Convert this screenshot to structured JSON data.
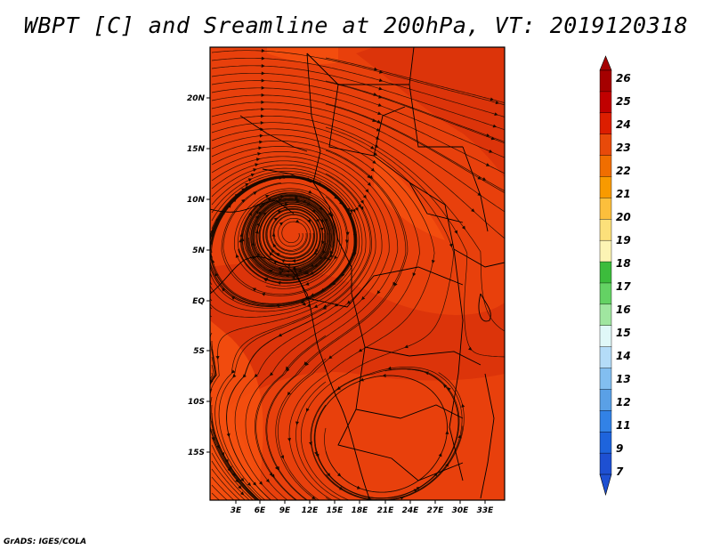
{
  "title": "WBPT [C] and Sreamline at 200hPa, VT: 2019120318",
  "credit": "GrADS: IGES/COLA",
  "map": {
    "x_ticks": [
      "3E",
      "6E",
      "9E",
      "12E",
      "15E",
      "18E",
      "21E",
      "24E",
      "27E",
      "30E",
      "33E"
    ],
    "y_ticks": [
      "20N",
      "15N",
      "10N",
      "5N",
      "EQ",
      "5S",
      "10S",
      "15S"
    ],
    "field_colors": {
      "base": "#e8400c",
      "darker": "#d9330a",
      "lighter": "#f5500f"
    }
  },
  "colorbar": {
    "labels": [
      "26",
      "25",
      "24",
      "23",
      "22",
      "21",
      "20",
      "19",
      "18",
      "17",
      "16",
      "15",
      "14",
      "13",
      "12",
      "11",
      "9",
      "7"
    ],
    "colors": [
      "#a50000",
      "#c00000",
      "#dc1e00",
      "#e84a0a",
      "#f06e00",
      "#f89a00",
      "#fcbf3c",
      "#fce07a",
      "#fcf4b4",
      "#3cbc3c",
      "#64d264",
      "#a0e6a0",
      "#e0f8f8",
      "#b4dcf8",
      "#82bef0",
      "#5aa0e6",
      "#3282e6",
      "#1e64dc",
      "#1e50d2"
    ]
  }
}
